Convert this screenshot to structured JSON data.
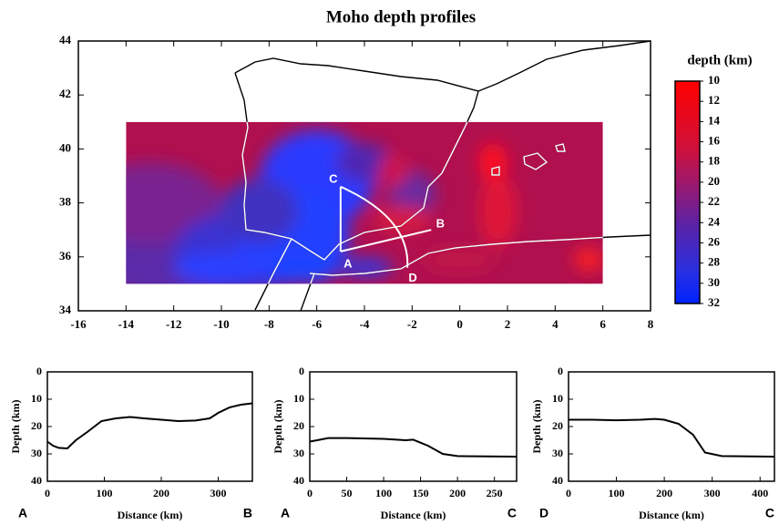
{
  "chart_data": [
    {
      "type": "map",
      "title": "Moho depth profiles",
      "xlim": [
        -16,
        8
      ],
      "xticks": [
        -16,
        -14,
        -12,
        -10,
        -8,
        -6,
        -4,
        -2,
        0,
        2,
        4,
        6,
        8
      ],
      "ylim": [
        34,
        44
      ],
      "yticks": [
        34,
        36,
        38,
        40,
        42,
        44
      ],
      "field": {
        "xlim": [
          -14,
          6
        ],
        "ylim": [
          35,
          41
        ]
      },
      "colorbar": {
        "title": "depth (km)",
        "lim": [
          10,
          32
        ],
        "ticks": [
          10,
          12,
          14,
          16,
          18,
          20,
          22,
          24,
          26,
          28,
          30,
          32
        ]
      },
      "points": [
        {
          "label": "A",
          "x": -5,
          "y": 36.2
        },
        {
          "label": "B",
          "x": -1.2,
          "y": 37
        },
        {
          "label": "C",
          "x": -5,
          "y": 38.6
        },
        {
          "label": "D",
          "x": -2.2,
          "y": 35.6
        }
      ]
    },
    {
      "type": "line",
      "xlabel": "Distance (km)",
      "ylabel": "Depth (km)",
      "start_label": "A",
      "end_label": "B",
      "color": "#000000",
      "x": [
        0,
        10,
        20,
        35,
        50,
        70,
        95,
        120,
        145,
        170,
        200,
        230,
        260,
        285,
        300,
        320,
        340,
        360
      ],
      "values": [
        25.5,
        27,
        27.8,
        28,
        25,
        22,
        18,
        17,
        16.5,
        17,
        17.5,
        18,
        17.8,
        17,
        15,
        13,
        12,
        11.5
      ],
      "xlim": [
        0,
        360
      ],
      "xticks": [
        0,
        100,
        200,
        300
      ],
      "ylim": [
        40,
        0
      ],
      "yticks": [
        0,
        10,
        20,
        30,
        40
      ]
    },
    {
      "type": "line",
      "xlabel": "Distance (km)",
      "ylabel": "Depth (km)",
      "start_label": "A",
      "end_label": "C",
      "color": "#000000",
      "x": [
        0,
        10,
        25,
        50,
        100,
        130,
        140,
        160,
        180,
        200,
        280
      ],
      "values": [
        25.5,
        25,
        24.2,
        24.2,
        24.5,
        25,
        24.8,
        27,
        30,
        30.8,
        31
      ],
      "xlim": [
        0,
        280
      ],
      "xticks": [
        0,
        50,
        100,
        150,
        200,
        250
      ],
      "ylim": [
        40,
        0
      ],
      "yticks": [
        0,
        10,
        20,
        30,
        40
      ]
    },
    {
      "type": "line",
      "xlabel": "Distance (km)",
      "ylabel": "Depth (km)",
      "start_label": "D",
      "end_label": "C",
      "color": "#000000",
      "x": [
        0,
        50,
        100,
        150,
        180,
        200,
        230,
        260,
        285,
        320,
        430
      ],
      "values": [
        17.5,
        17.5,
        17.7,
        17.5,
        17.2,
        17.5,
        19,
        23,
        29.5,
        30.8,
        31
      ],
      "xlim": [
        0,
        430
      ],
      "xticks": [
        0,
        100,
        200,
        300,
        400
      ],
      "ylim": [
        40,
        0
      ],
      "yticks": [
        0,
        10,
        20,
        30,
        40
      ]
    }
  ]
}
